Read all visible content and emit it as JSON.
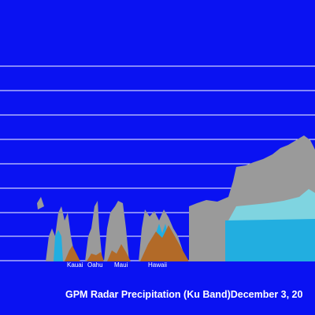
{
  "title": "GPM Radar Precipitation (Ku Band)December 3, 20",
  "islands": [
    "Kauai",
    "Oahu",
    "Maui",
    "Hawaii"
  ]
}
